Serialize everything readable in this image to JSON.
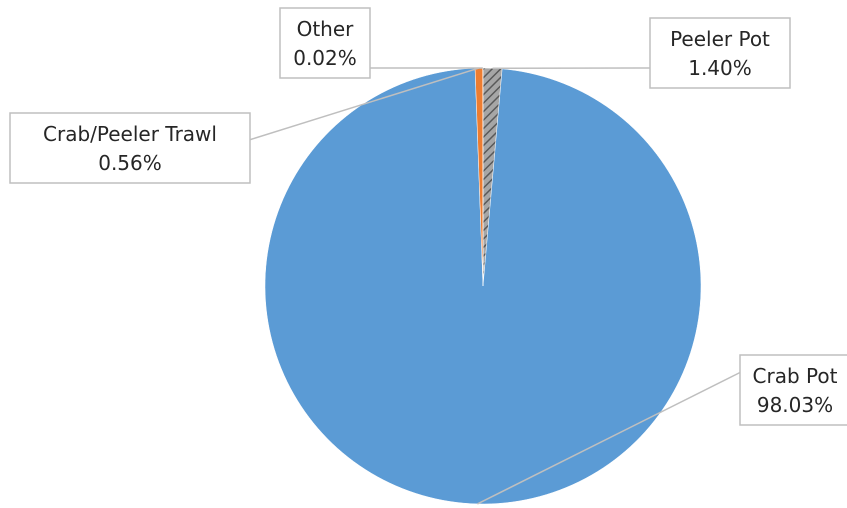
{
  "chart_data": {
    "type": "pie",
    "title": "",
    "slices": [
      {
        "name": "Peeler Pot",
        "value": 1.4,
        "label": "1.40%",
        "color": "#808080",
        "pattern": "diagonal-hatch"
      },
      {
        "name": "Crab Pot",
        "value": 98.03,
        "label": "98.03%",
        "color": "#5b9bd5"
      },
      {
        "name": "Crab/Peeler Trawl",
        "value": 0.56,
        "label": "0.56%",
        "color": "#ed7d31"
      },
      {
        "name": "Other",
        "value": 0.02,
        "label": "0.02%",
        "color": "#4472c4"
      }
    ],
    "start_angle_deg": 0,
    "direction": "clockwise",
    "legend": "none",
    "data_labels": "callouts"
  }
}
